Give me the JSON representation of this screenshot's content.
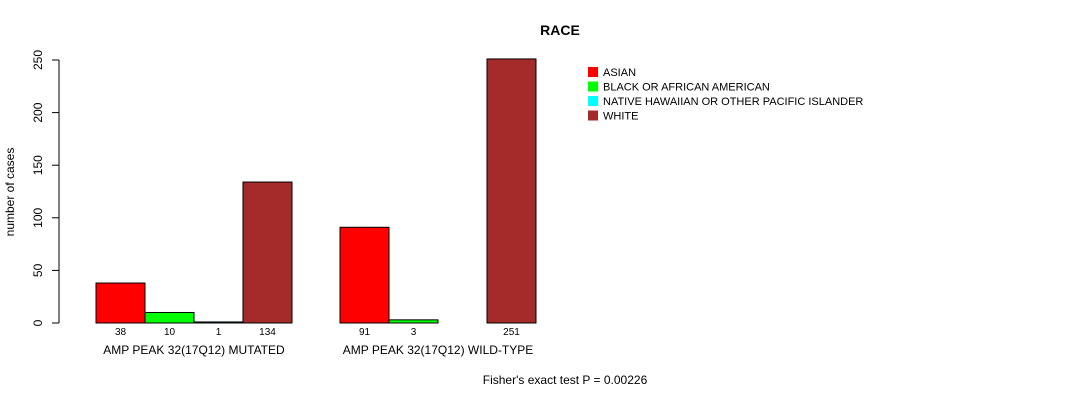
{
  "chart_data": {
    "type": "bar",
    "title": "RACE",
    "xlabel": "",
    "ylabel": "number of cases",
    "ylim": [
      0,
      250
    ],
    "yticks": [
      0,
      50,
      100,
      150,
      200,
      250
    ],
    "categories": [
      "AMP PEAK 32(17Q12) MUTATED",
      "AMP PEAK 32(17Q12) WILD-TYPE"
    ],
    "series": [
      {
        "name": "ASIAN",
        "color": "#ff0000",
        "values": [
          38,
          91
        ],
        "labels": [
          "38",
          "91"
        ]
      },
      {
        "name": "BLACK OR AFRICAN AMERICAN",
        "color": "#00ff00",
        "values": [
          10,
          3
        ],
        "labels": [
          "10",
          "3"
        ]
      },
      {
        "name": "NATIVE HAWAIIAN OR OTHER PACIFIC ISLANDER",
        "color": "#00ffff",
        "values": [
          1,
          0
        ],
        "labels": [
          "1",
          ""
        ]
      },
      {
        "name": "WHITE",
        "color": "#a52a2a",
        "values": [
          134,
          251
        ],
        "labels": [
          "134",
          "251"
        ]
      }
    ],
    "legend_position": "top-right",
    "annotation": "Fisher's exact test P = 0.00226"
  }
}
